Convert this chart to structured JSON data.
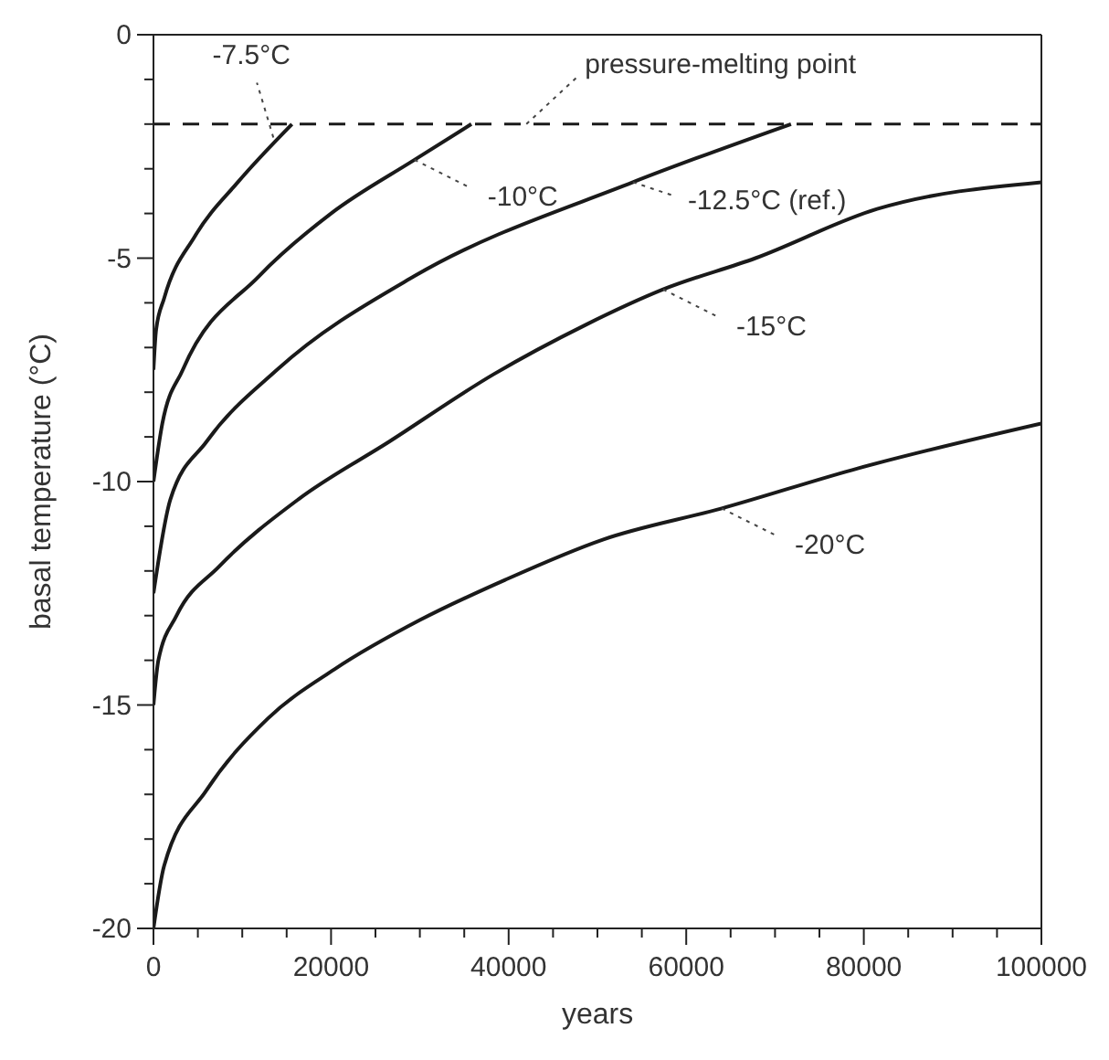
{
  "chart_data": {
    "type": "line",
    "xlabel": "years",
    "ylabel": "basal temperature (°C)",
    "xlim": [
      0,
      100000
    ],
    "ylim": [
      -20,
      0
    ],
    "xticks": [
      0,
      {
        "value": 5000,
        "label": null
      },
      {
        "value": 10000,
        "label": null
      },
      {
        "value": 15000,
        "label": null
      },
      20000,
      {
        "value": 25000,
        "label": null
      },
      {
        "value": 30000,
        "label": null
      },
      {
        "value": 35000,
        "label": null
      },
      40000,
      {
        "value": 45000,
        "label": null
      },
      {
        "value": 50000,
        "label": null
      },
      {
        "value": 55000,
        "label": null
      },
      60000,
      {
        "value": 65000,
        "label": null
      },
      {
        "value": 70000,
        "label": null
      },
      {
        "value": 75000,
        "label": null
      },
      80000,
      {
        "value": 85000,
        "label": null
      },
      {
        "value": 90000,
        "label": null
      },
      {
        "value": 95000,
        "label": null
      },
      100000
    ],
    "yticks": [
      -20,
      {
        "value": -19,
        "label": null
      },
      {
        "value": -18,
        "label": null
      },
      {
        "value": -17,
        "label": null
      },
      {
        "value": -16,
        "label": null
      },
      -15,
      {
        "value": -14,
        "label": null
      },
      {
        "value": -13,
        "label": null
      },
      {
        "value": -12,
        "label": null
      },
      {
        "value": -11,
        "label": null
      },
      -10,
      {
        "value": -9,
        "label": null
      },
      {
        "value": -8,
        "label": null
      },
      {
        "value": -7,
        "label": null
      },
      {
        "value": -6,
        "label": null
      },
      -5,
      {
        "value": -4,
        "label": null
      },
      {
        "value": -3,
        "label": null
      },
      {
        "value": -2,
        "label": null
      },
      {
        "value": -1,
        "label": null
      },
      0
    ],
    "marker": "none",
    "line_style": "solid",
    "series": [
      {
        "color": "#1a1a1a",
        "x": [
          0,
          300,
          1200,
          4700,
          9500,
          15600
        ],
        "values": [
          -7.5,
          -6.6,
          -5.9,
          -4.5,
          -3.3,
          -2
        ]
      },
      {
        "color": "#1a1a1a",
        "x": [
          0,
          1000,
          3300,
          11900,
          20000,
          29400,
          35800
        ],
        "values": [
          -10,
          -8.7,
          -7.5,
          -5.4,
          -4.0,
          -2.8,
          -2
        ]
      },
      {
        "color": "#1a1a1a",
        "x": [
          0,
          1900,
          6000,
          13900,
          29400,
          54000,
          71800
        ],
        "values": [
          -12.5,
          -10.4,
          -9.1,
          -7.5,
          -5.4,
          -3.3,
          -2
        ]
      },
      {
        "color": "#1a1a1a",
        "x": [
          0,
          550,
          2600,
          7400,
          16300,
          26600,
          38300,
          48600,
          57400,
          67800,
          81500,
          100000
        ],
        "values": [
          -15,
          -14.0,
          -13.0,
          -11.9,
          -10.4,
          -9.1,
          -7.6,
          -6.5,
          -5.7,
          -5.0,
          -3.9,
          -3.3
        ]
      },
      {
        "color": "#1a1a1a",
        "x": [
          0,
          1200,
          6000,
          12900,
          20400,
          30000,
          39600,
          50600,
          64000,
          79400,
          100000
        ],
        "values": [
          -20,
          -18.6,
          -16.9,
          -15.3,
          -14.2,
          -13.1,
          -12.2,
          -11.3,
          -10.6,
          -9.7,
          -8.7
        ]
      }
    ],
    "ref_lines": [
      {
        "axis": "y",
        "value": -2,
        "label": "pressure-melting point",
        "color": "#1a1a1a",
        "line_style": "dashed"
      }
    ],
    "annotations": [
      {
        "text": "-7.5°C",
        "x": 13500,
        "y": -2.3
      },
      {
        "text": "-10°C",
        "x": 29400,
        "y": -2.8
      },
      {
        "text": "-12.5°C (ref.)",
        "x": 54000,
        "y": -3.3
      },
      {
        "text": "-15°C",
        "x": 57400,
        "y": -5.7
      },
      {
        "text": "-20°C",
        "x": 64000,
        "y": -10.6
      }
    ]
  }
}
